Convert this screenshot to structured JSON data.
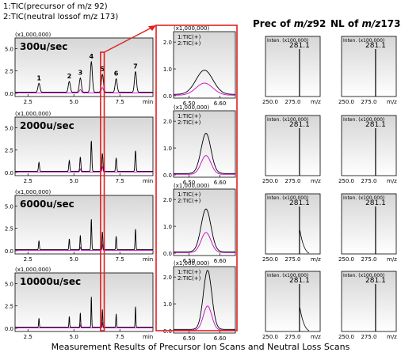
{
  "legend": {
    "item1": "1:TIC(precursor of m/z 92)",
    "item2": "2:TIC(neutral lossof m/z 173)"
  },
  "headers": {
    "prec_prefix": "Prec of ",
    "prec_mz": "m/z",
    "prec_value": "92",
    "nl_prefix": "NL of ",
    "nl_mz": "m/z",
    "nl_value": "173"
  },
  "caption": "Measurement Results of Precursor Ion Scans and Neutral Loss Scans",
  "colors": {
    "series1": "#000000",
    "series2": "#cc00cc",
    "speed_label": "#339933",
    "peak_label": "#0000cc",
    "highlight": "#e02020",
    "plot_bg_top": "#d6d6d6",
    "plot_bg_bottom": "#ffffff"
  },
  "chart_data": [
    {
      "type": "line",
      "panel": "full-chromatogram",
      "scan_speeds": [
        "300u/sec",
        "2000u/sec",
        "6000u/sec",
        "10000u/sec"
      ],
      "ylabel": "(x1,000,000)",
      "xlabel": "min",
      "xlim": [
        1.8,
        9.3
      ],
      "ylim": [
        0,
        6.0
      ],
      "x_ticks": [
        2.5,
        5.0,
        7.5
      ],
      "y_ticks": [
        0.0,
        2.5,
        5.0
      ],
      "x_tick_labels": [
        "2.5",
        "5.0",
        "7.5"
      ],
      "y_tick_labels": [
        "0.0",
        "2.5",
        "5.0"
      ],
      "peak_labels": [
        "1",
        "2",
        "3",
        "4",
        "5",
        "6",
        "7"
      ],
      "series": [
        {
          "name": "1:TIC(+)",
          "x": [
            3.1,
            4.75,
            5.35,
            5.95,
            6.55,
            7.3,
            8.35
          ],
          "y": [
            1.0,
            1.2,
            1.6,
            3.4,
            2.0,
            1.5,
            2.3
          ]
        },
        {
          "name": "2:TIC(+)",
          "x": [
            5.35,
            6.55
          ],
          "y": [
            0.35,
            0.6
          ]
        }
      ]
    },
    {
      "type": "line",
      "panel": "zoom",
      "scan_speeds": [
        "300u/sec",
        "2000u/sec",
        "6000u/sec",
        "10000u/sec"
      ],
      "ylabel": "(x1,000,000)",
      "xlim": [
        6.45,
        6.65
      ],
      "ylim": [
        0,
        2.3
      ],
      "x_ticks": [
        6.5,
        6.6
      ],
      "y_ticks": [
        0.0,
        1.0,
        2.0
      ],
      "x_tick_labels": [
        "6.50",
        "6.60"
      ],
      "y_tick_labels": [
        "0.0",
        "1.0",
        "2.0"
      ],
      "legend": [
        "1:TIC(+)",
        "2:TIC(+)"
      ],
      "series": [
        {
          "name": "1:TIC(+)",
          "peak_x": [
            6.55,
            6.555,
            6.555,
            6.56
          ],
          "peak_y": [
            0.9,
            1.5,
            1.6,
            2.2
          ],
          "width": [
            0.06,
            0.035,
            0.035,
            0.03
          ]
        },
        {
          "name": "2:TIC(+)",
          "peak_x": [
            6.55,
            6.555,
            6.555,
            6.56
          ],
          "peak_y": [
            0.45,
            0.7,
            0.75,
            0.9
          ],
          "width": [
            0.06,
            0.035,
            0.035,
            0.03
          ]
        }
      ]
    },
    {
      "type": "bar",
      "panel": "prec-spectrum",
      "ylabel": "Inten. (x100,000)",
      "xlabel": "m/z",
      "xlim": [
        250,
        300
      ],
      "x_tick_labels": [
        "250.0",
        "275.0"
      ],
      "peak_label": "281.1",
      "peak_mz": 281.1
    },
    {
      "type": "bar",
      "panel": "nl-spectrum",
      "ylabel": "Inten. (x100,000)",
      "xlabel": "m/z",
      "xlim": [
        250,
        300
      ],
      "x_tick_labels": [
        "250.0",
        "275.0"
      ],
      "peak_label": "281.1",
      "peak_mz": 281.1
    }
  ]
}
